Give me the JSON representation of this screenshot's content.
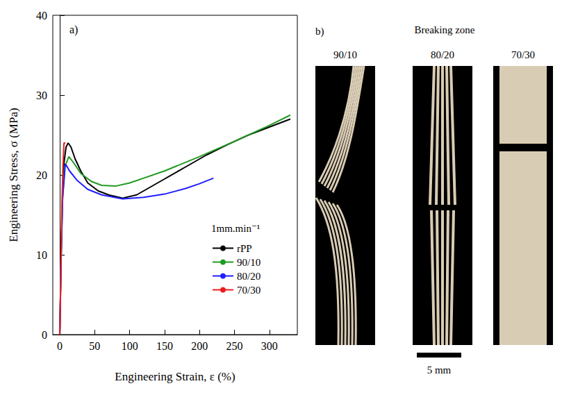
{
  "chart_data": {
    "type": "line",
    "x_label": "Engineering Strain, ε (%)",
    "y_label": "Engineering Stress, σ (MPa)",
    "annotations": [
      "a)",
      "1mm.min⁻¹"
    ],
    "xlim": [
      -10,
      340
    ],
    "xticks": [
      0,
      50,
      100,
      150,
      200,
      250,
      300
    ],
    "ylim": [
      0,
      40
    ],
    "yticks": [
      0,
      10,
      20,
      30,
      40
    ],
    "grid": false,
    "legend": "lower right",
    "series": [
      {
        "name": "rPP",
        "color": "#000000",
        "values": [
          [
            0,
            0
          ],
          [
            2,
            10
          ],
          [
            4,
            18
          ],
          [
            6,
            21.5
          ],
          [
            9,
            23.5
          ],
          [
            12,
            24
          ],
          [
            16,
            23.5
          ],
          [
            22,
            22
          ],
          [
            30,
            20.5
          ],
          [
            40,
            19
          ],
          [
            55,
            18
          ],
          [
            70,
            17.5
          ],
          [
            90,
            17.1
          ],
          [
            110,
            17.5
          ],
          [
            130,
            18.5
          ],
          [
            150,
            19.5
          ],
          [
            180,
            21
          ],
          [
            210,
            22.5
          ],
          [
            240,
            23.8
          ],
          [
            270,
            25
          ],
          [
            300,
            26
          ],
          [
            330,
            27
          ]
        ]
      },
      {
        "name": "90/10",
        "color": "#1f9a1f",
        "values": [
          [
            0,
            0
          ],
          [
            2,
            10
          ],
          [
            4,
            17
          ],
          [
            7,
            21
          ],
          [
            13,
            22.3
          ],
          [
            20,
            21.5
          ],
          [
            30,
            20.2
          ],
          [
            45,
            19.2
          ],
          [
            60,
            18.7
          ],
          [
            80,
            18.6
          ],
          [
            100,
            19
          ],
          [
            120,
            19.6
          ],
          [
            150,
            20.5
          ],
          [
            200,
            22.3
          ],
          [
            250,
            24.2
          ],
          [
            300,
            26.2
          ],
          [
            330,
            27.5
          ]
        ]
      },
      {
        "name": "80/20",
        "color": "#1f1fff",
        "values": [
          [
            0,
            0
          ],
          [
            2,
            10
          ],
          [
            4,
            17
          ],
          [
            8,
            21.4
          ],
          [
            14,
            20.5
          ],
          [
            25,
            19.3
          ],
          [
            40,
            18.2
          ],
          [
            60,
            17.5
          ],
          [
            90,
            17
          ],
          [
            120,
            17.2
          ],
          [
            150,
            17.6
          ],
          [
            180,
            18.3
          ],
          [
            200,
            18.9
          ],
          [
            220,
            19.6
          ]
        ]
      },
      {
        "name": "70/30",
        "color": "#ee1c1c",
        "values": [
          [
            0,
            0
          ],
          [
            1.5,
            8
          ],
          [
            3,
            16
          ],
          [
            4.5,
            21
          ],
          [
            6,
            24
          ],
          [
            8,
            24
          ]
        ]
      }
    ]
  },
  "panel_b": {
    "label": "b)",
    "title": "Breaking zone",
    "samples": [
      "90/10",
      "80/20",
      "70/30"
    ],
    "scale_bar": "5 mm"
  }
}
